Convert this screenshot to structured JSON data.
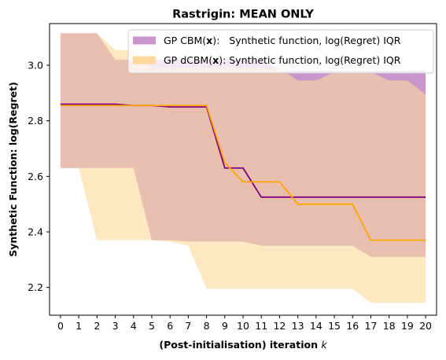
{
  "chart_data": {
    "type": "area",
    "title": "Rastrigin: MEAN ONLY",
    "xlabel": "(Post-initialisation) iteration",
    "xlabel_var": "k",
    "ylabel": "Synthetic Function: log(Regret)",
    "x": [
      0,
      1,
      2,
      3,
      4,
      5,
      6,
      7,
      8,
      9,
      10,
      11,
      12,
      13,
      14,
      15,
      16,
      17,
      18,
      19,
      20
    ],
    "xlim": [
      -0.6,
      20.6
    ],
    "ylim": [
      2.1,
      3.15
    ],
    "yticks": [
      2.2,
      2.4,
      2.6,
      2.8,
      3.0
    ],
    "ytick_labels": [
      "2.2",
      "2.4",
      "2.6",
      "2.8",
      "3.0"
    ],
    "xtick_labels": [
      "0",
      "1",
      "2",
      "3",
      "4",
      "5",
      "6",
      "7",
      "8",
      "9",
      "10",
      "11",
      "12",
      "13",
      "14",
      "15",
      "16",
      "17",
      "18",
      "19",
      "20"
    ],
    "grid": false,
    "legend_position": "top-right",
    "series": [
      {
        "name_prefix": "GP CBM(",
        "name_bold": "x",
        "name_suffix": "):   Synthetic function, log(Regret) IQR",
        "line_color": "#800080",
        "fill_color": "#c896cc",
        "median": [
          2.86,
          2.86,
          2.86,
          2.86,
          2.855,
          2.855,
          2.85,
          2.85,
          2.85,
          2.63,
          2.63,
          2.525,
          2.525,
          2.525,
          2.525,
          2.525,
          2.525,
          2.525,
          2.525,
          2.525,
          2.525
        ],
        "q1": [
          2.63,
          2.63,
          2.63,
          2.63,
          2.63,
          2.37,
          2.37,
          2.365,
          2.365,
          2.365,
          2.365,
          2.35,
          2.35,
          2.35,
          2.35,
          2.35,
          2.35,
          2.31,
          2.31,
          2.31,
          2.31
        ],
        "q3": [
          3.115,
          3.115,
          3.115,
          3.02,
          3.02,
          3.02,
          3.02,
          3.02,
          3.02,
          3.02,
          3.02,
          3.02,
          2.98,
          2.98,
          2.98,
          2.98,
          2.98,
          2.98,
          2.98,
          2.98,
          2.98
        ]
      },
      {
        "name_prefix": "GP dCBM(",
        "name_bold": "x",
        "name_suffix": "): Synthetic function, log(Regret) IQR",
        "line_color": "#ffa500",
        "fill_color": "#fdd89a",
        "median": [
          2.855,
          2.855,
          2.855,
          2.855,
          2.855,
          2.855,
          2.855,
          2.855,
          2.855,
          2.65,
          2.58,
          2.58,
          2.58,
          2.5,
          2.5,
          2.5,
          2.5,
          2.37,
          2.37,
          2.37,
          2.37
        ],
        "q1": [
          2.63,
          2.63,
          2.37,
          2.37,
          2.37,
          2.37,
          2.365,
          2.35,
          2.195,
          2.195,
          2.195,
          2.195,
          2.195,
          2.195,
          2.195,
          2.195,
          2.195,
          2.145,
          2.145,
          2.145,
          2.145
        ],
        "q3": [
          3.115,
          3.115,
          3.115,
          3.055,
          3.055,
          2.99,
          2.99,
          2.99,
          2.99,
          2.99,
          2.99,
          2.99,
          2.99,
          2.945,
          2.945,
          2.975,
          2.975,
          2.975,
          2.945,
          2.945,
          2.895
        ]
      }
    ]
  }
}
